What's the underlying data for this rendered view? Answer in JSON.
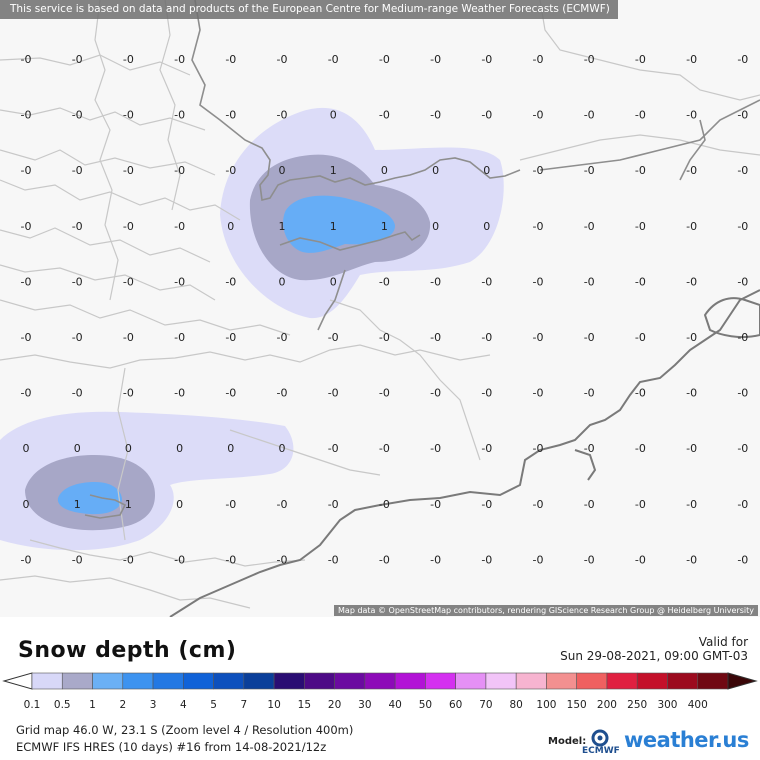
{
  "map": {
    "disclaimer": "This service is based on data and products of the European Centre for Medium-range Weather Forecasts (ECMWF)",
    "credits": "Map data © OpenStreetMap contributors, rendering GIScience Research Group @ Heidelberg University",
    "grid_rows": [
      [
        "-0",
        "-0",
        "-0",
        "-0",
        "-0",
        "-0",
        "-0",
        "-0",
        "-0",
        "-0",
        "-0",
        "-0",
        "-0",
        "-0",
        "-0"
      ],
      [
        "-0",
        "-0",
        "-0",
        "-0",
        "-0",
        "-0",
        "0",
        "-0",
        "-0",
        "-0",
        "-0",
        "-0",
        "-0",
        "-0",
        "-0"
      ],
      [
        "-0",
        "-0",
        "-0",
        "-0",
        "-0",
        "0",
        "1",
        "0",
        "0",
        "0",
        "-0",
        "-0",
        "-0",
        "-0",
        "-0"
      ],
      [
        "-0",
        "-0",
        "-0",
        "-0",
        "0",
        "1",
        "1",
        "1",
        "0",
        "0",
        "-0",
        "-0",
        "-0",
        "-0",
        "-0"
      ],
      [
        "-0",
        "-0",
        "-0",
        "-0",
        "-0",
        "0",
        "0",
        "-0",
        "-0",
        "-0",
        "-0",
        "-0",
        "-0",
        "-0",
        "-0"
      ],
      [
        "-0",
        "-0",
        "-0",
        "-0",
        "-0",
        "-0",
        "-0",
        "-0",
        "-0",
        "-0",
        "-0",
        "-0",
        "-0",
        "-0",
        "-0"
      ],
      [
        "-0",
        "-0",
        "-0",
        "-0",
        "-0",
        "-0",
        "-0",
        "-0",
        "-0",
        "-0",
        "-0",
        "-0",
        "-0",
        "-0",
        "-0"
      ],
      [
        "0",
        "0",
        "0",
        "0",
        "0",
        "0",
        "-0",
        "-0",
        "-0",
        "-0",
        "-0",
        "-0",
        "-0",
        "-0",
        "-0"
      ],
      [
        "0",
        "1",
        "1",
        "0",
        "-0",
        "-0",
        "-0",
        "-0",
        "-0",
        "-0",
        "-0",
        "-0",
        "-0",
        "-0",
        "-0"
      ],
      [
        "-0",
        "-0",
        "-0",
        "-0",
        "-0",
        "-0",
        "-0",
        "-0",
        "-0",
        "-0",
        "-0",
        "-0",
        "-0",
        "-0",
        "-0"
      ]
    ]
  },
  "header": {
    "title": "Snow depth (cm)",
    "valid_label": "Valid for",
    "valid_date": "Sun 29-08-2021, 09:00 GMT-03"
  },
  "legend": {
    "levels": [
      "0.1",
      "0.5",
      "1",
      "2",
      "3",
      "4",
      "5",
      "7",
      "10",
      "15",
      "20",
      "30",
      "40",
      "50",
      "60",
      "70",
      "80",
      "100",
      "150",
      "200",
      "250",
      "300",
      "400"
    ],
    "colors": [
      "#d8d8f8",
      "#a9a9c9",
      "#6bb0f5",
      "#3d93f0",
      "#2378e3",
      "#1062d8",
      "#0d50bd",
      "#0a3f9a",
      "#2a0d73",
      "#4d0a86",
      "#6b0aa0",
      "#8d0ab8",
      "#b212d6",
      "#d430f0",
      "#e590f5",
      "#f2c4f8",
      "#f7b4d0",
      "#f39090",
      "#ef6060",
      "#e02040",
      "#c4102a",
      "#9c0a1e",
      "#700812"
    ]
  },
  "footer": {
    "grid_info": "Grid map 46.0 W, 23.1 S (Zoom level 4 / Resolution 400m)",
    "model_info": "ECMWF IFS HRES (10 days) #16 from 14-08-2021/12z",
    "model_label": "Model:",
    "ecmwf_text": "ECMWF",
    "brand": "weather.us"
  }
}
